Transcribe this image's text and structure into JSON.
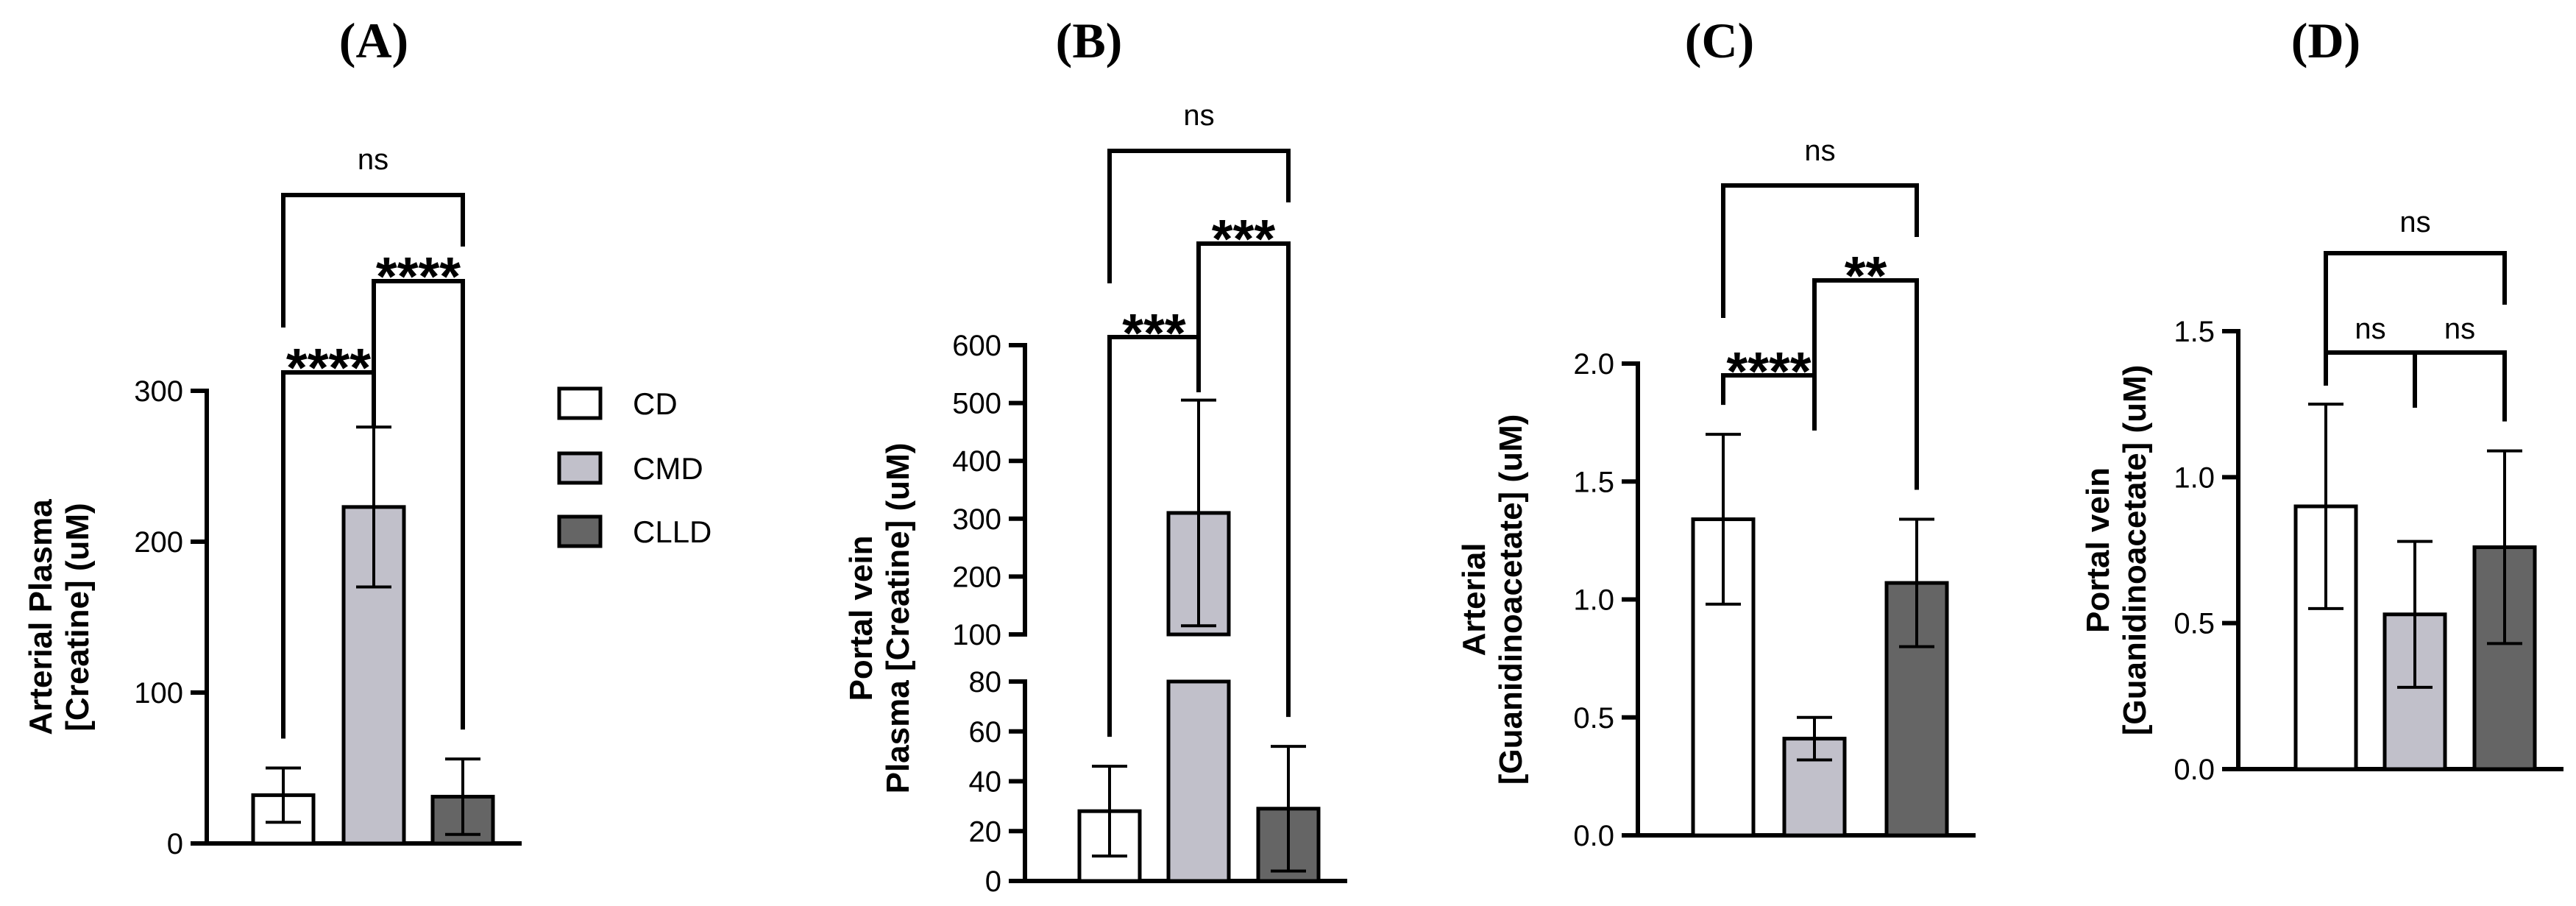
{
  "figure": {
    "legend": [
      {
        "label": "CD",
        "color": "#ffffff"
      },
      {
        "label": "CMD",
        "color": "#c1c0ca"
      },
      {
        "label": "CLLD",
        "color": "#656565"
      }
    ]
  },
  "chart_data": [
    {
      "type": "bar",
      "panel": "A",
      "title": "(A)",
      "ylabel": [
        "Arterial Plasma",
        "[Creatine] (uM)"
      ],
      "categories": [
        "CD",
        "CMD",
        "CLLD"
      ],
      "values": [
        32,
        223,
        31
      ],
      "errors": [
        18,
        53,
        25
      ],
      "colors": [
        "#ffffff",
        "#c1c0ca",
        "#656565"
      ],
      "ylim": [
        0,
        300
      ],
      "yticks": [
        0,
        100,
        200,
        300
      ],
      "comparisons": [
        {
          "from": 0,
          "to": 1,
          "label": "****"
        },
        {
          "from": 1,
          "to": 2,
          "label": "****"
        },
        {
          "from": 0,
          "to": 2,
          "label": "ns"
        }
      ]
    },
    {
      "type": "bar",
      "panel": "B",
      "title": "(B)",
      "ylabel": [
        "Portal vein",
        "Plasma [Creatine] (uM)"
      ],
      "categories": [
        "CD",
        "CMD",
        "CLLD"
      ],
      "values": [
        28,
        310,
        29
      ],
      "errors": [
        18,
        195,
        25
      ],
      "colors": [
        "#ffffff",
        "#c1c0ca",
        "#656565"
      ],
      "axis_break": {
        "lower": [
          0,
          80
        ],
        "upper": [
          100,
          600
        ]
      },
      "yticks_lower": [
        0,
        20,
        40,
        60,
        80
      ],
      "yticks_upper": [
        100,
        200,
        300,
        400,
        500,
        600
      ],
      "comparisons": [
        {
          "from": 0,
          "to": 1,
          "label": "***"
        },
        {
          "from": 1,
          "to": 2,
          "label": "***"
        },
        {
          "from": 0,
          "to": 2,
          "label": "ns"
        }
      ]
    },
    {
      "type": "bar",
      "panel": "C",
      "title": "(C)",
      "ylabel": [
        "Arterial",
        "[Guanidinoacetate] (uM)"
      ],
      "categories": [
        "CD",
        "CMD",
        "CLLD"
      ],
      "values": [
        1.34,
        0.41,
        1.07
      ],
      "errors": [
        0.36,
        0.09,
        0.27
      ],
      "colors": [
        "#ffffff",
        "#c1c0ca",
        "#656565"
      ],
      "ylim": [
        0,
        2.0
      ],
      "yticks": [
        0.0,
        0.5,
        1.0,
        1.5,
        2.0
      ],
      "comparisons": [
        {
          "from": 0,
          "to": 1,
          "label": "****"
        },
        {
          "from": 1,
          "to": 2,
          "label": "**"
        },
        {
          "from": 0,
          "to": 2,
          "label": "ns"
        }
      ]
    },
    {
      "type": "bar",
      "panel": "D",
      "title": "(D)",
      "ylabel": [
        "Portal vein",
        "[Guanidinoacetate] (uM)"
      ],
      "categories": [
        "CD",
        "CMD",
        "CLLD"
      ],
      "values": [
        0.9,
        0.53,
        0.76
      ],
      "errors": [
        0.35,
        0.25,
        0.33
      ],
      "colors": [
        "#ffffff",
        "#c1c0ca",
        "#656565"
      ],
      "ylim": [
        0,
        1.5
      ],
      "yticks": [
        0.0,
        0.5,
        1.0,
        1.5
      ],
      "comparisons": [
        {
          "from": 0,
          "to": 1,
          "label": "ns"
        },
        {
          "from": 1,
          "to": 2,
          "label": "ns"
        },
        {
          "from": 0,
          "to": 2,
          "label": "ns"
        }
      ]
    }
  ]
}
